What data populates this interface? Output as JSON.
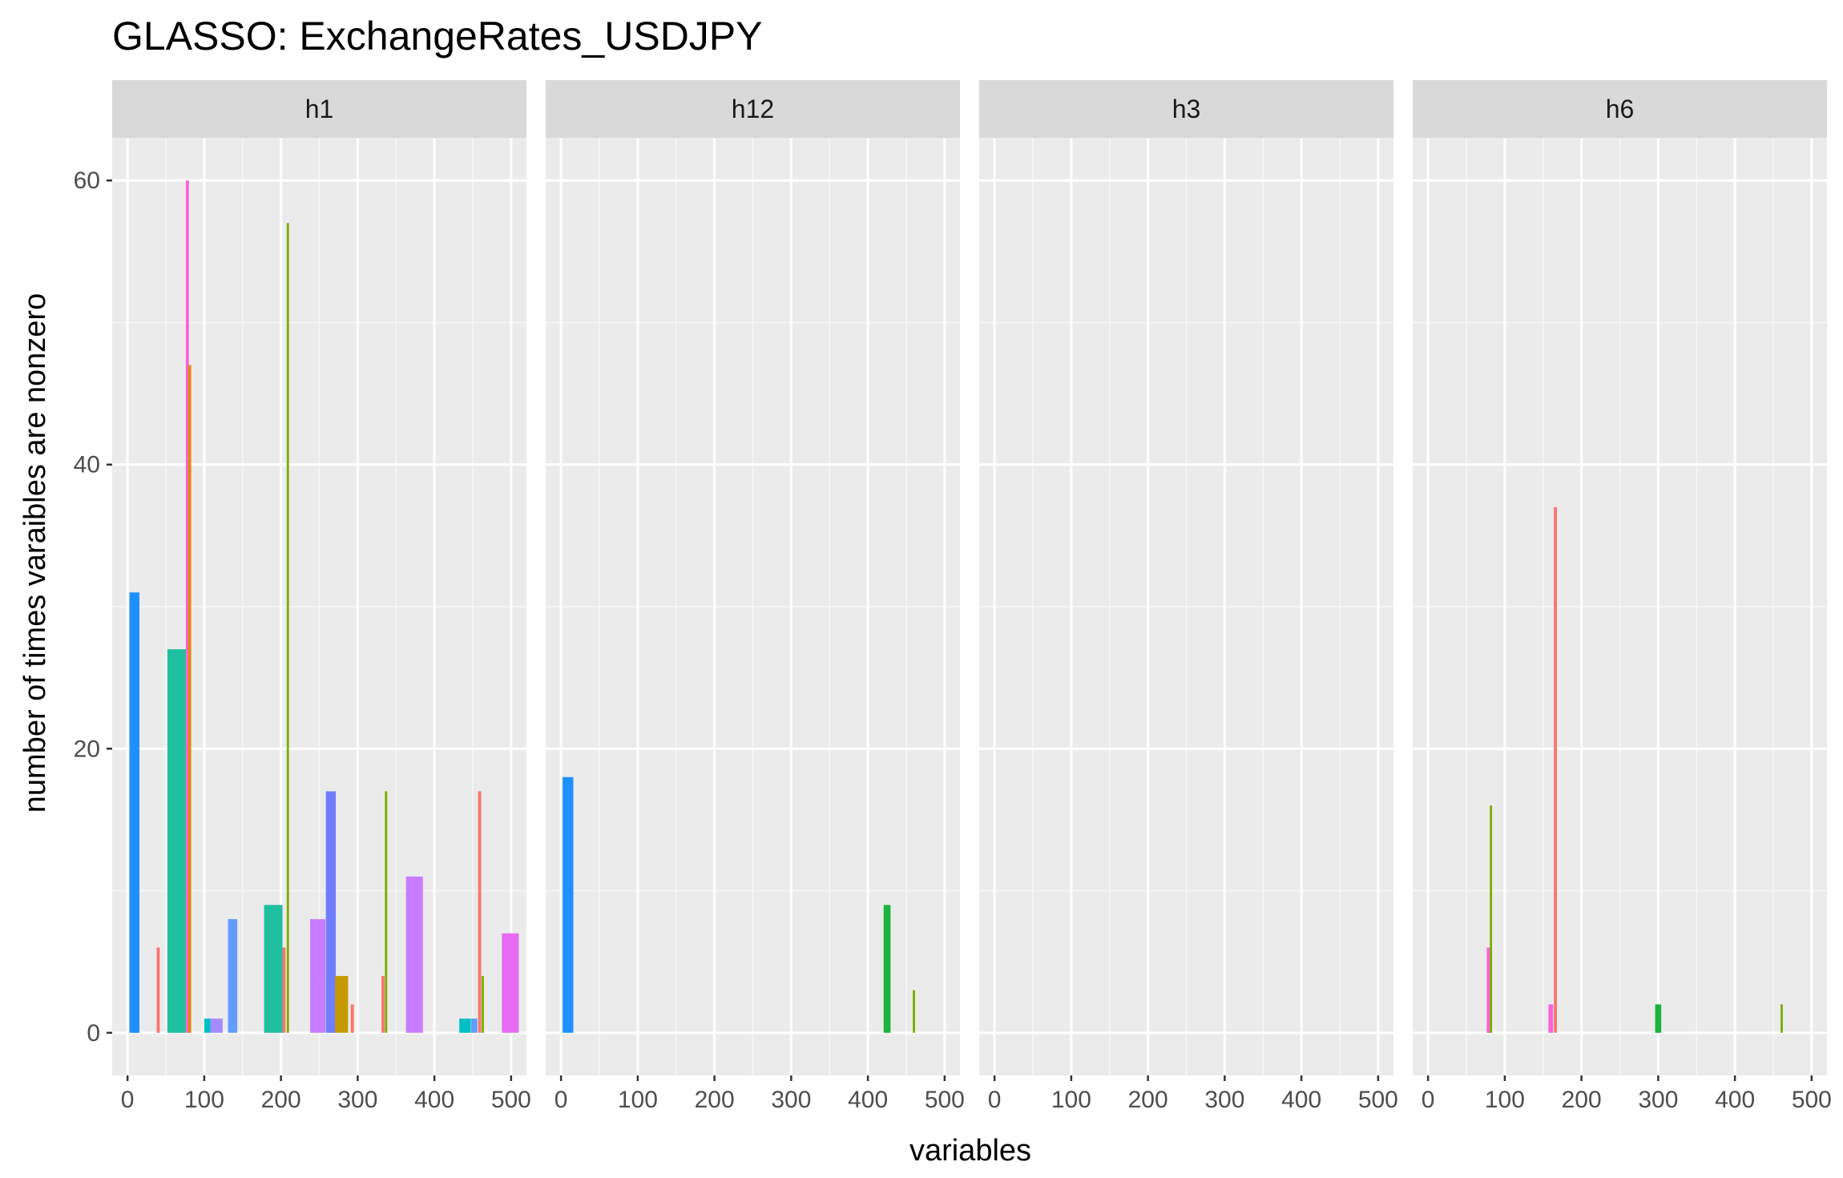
{
  "chart_data": {
    "type": "bar",
    "title": "GLASSO: ExchangeRates_USDJPY",
    "xlabel": "variables",
    "ylabel": "number of times varaibles are nonzero",
    "xlim": [
      -20,
      520
    ],
    "ylim": [
      -3,
      63
    ],
    "x_ticks": [
      0,
      100,
      200,
      300,
      400,
      500
    ],
    "x_tick_labels": [
      "0",
      "100",
      "200",
      "300",
      "400",
      "500"
    ],
    "y_ticks": [
      0,
      20,
      40,
      60
    ],
    "y_tick_labels": [
      "0",
      "20",
      "40",
      "60"
    ],
    "grid": true,
    "legend": "none",
    "panels": [
      {
        "name": "h1",
        "bars": [
          {
            "x": 9,
            "width": 13,
            "value": 31,
            "color": "#1e90ff"
          },
          {
            "x": 40,
            "width": 4,
            "value": 6,
            "color": "#f8766d"
          },
          {
            "x": 64,
            "width": 24,
            "value": 27,
            "color": "#1fbfa0"
          },
          {
            "x": 78,
            "width": 4,
            "value": 60,
            "color": "#fb61d7"
          },
          {
            "x": 81,
            "width": 4,
            "value": 47,
            "color": "#e68613"
          },
          {
            "x": 104,
            "width": 8,
            "value": 1,
            "color": "#00bfc4"
          },
          {
            "x": 116,
            "width": 16,
            "value": 1,
            "color": "#a58aff"
          },
          {
            "x": 137,
            "width": 12,
            "value": 8,
            "color": "#619cff"
          },
          {
            "x": 190,
            "width": 24,
            "value": 9,
            "color": "#1fbfa0"
          },
          {
            "x": 204,
            "width": 4,
            "value": 6,
            "color": "#f8766d"
          },
          {
            "x": 209,
            "width": 3,
            "value": 57,
            "color": "#7cae00"
          },
          {
            "x": 248,
            "width": 20,
            "value": 8,
            "color": "#c77cff"
          },
          {
            "x": 265,
            "width": 13,
            "value": 17,
            "color": "#6f7eff"
          },
          {
            "x": 279,
            "width": 17,
            "value": 4,
            "color": "#c49a00"
          },
          {
            "x": 293,
            "width": 4,
            "value": 2,
            "color": "#f8766d"
          },
          {
            "x": 333,
            "width": 4,
            "value": 4,
            "color": "#f8766d"
          },
          {
            "x": 337,
            "width": 3,
            "value": 17,
            "color": "#7cae00"
          },
          {
            "x": 374,
            "width": 22,
            "value": 11,
            "color": "#c77cff"
          },
          {
            "x": 440,
            "width": 15,
            "value": 1,
            "color": "#00bfc4"
          },
          {
            "x": 452,
            "width": 8,
            "value": 1,
            "color": "#619cff"
          },
          {
            "x": 459,
            "width": 4,
            "value": 17,
            "color": "#f8766d"
          },
          {
            "x": 463,
            "width": 3,
            "value": 4,
            "color": "#7cae00"
          },
          {
            "x": 499,
            "width": 22,
            "value": 7,
            "color": "#e76bf3"
          }
        ]
      },
      {
        "name": "h12",
        "bars": [
          {
            "x": 9,
            "width": 14,
            "value": 18,
            "color": "#1e90ff"
          },
          {
            "x": 425,
            "width": 9,
            "value": 9,
            "color": "#1db33f"
          },
          {
            "x": 460,
            "width": 3,
            "value": 3,
            "color": "#7cae00"
          }
        ]
      },
      {
        "name": "h3",
        "bars": []
      },
      {
        "name": "h6",
        "bars": [
          {
            "x": 79,
            "width": 5,
            "value": 6,
            "color": "#fb61d7"
          },
          {
            "x": 82,
            "width": 3,
            "value": 16,
            "color": "#7cae00"
          },
          {
            "x": 160,
            "width": 6,
            "value": 2,
            "color": "#fb61d7"
          },
          {
            "x": 166,
            "width": 4,
            "value": 37,
            "color": "#f8766d"
          },
          {
            "x": 300,
            "width": 8,
            "value": 2,
            "color": "#1db33f"
          },
          {
            "x": 461,
            "width": 3,
            "value": 2,
            "color": "#7cae00"
          }
        ]
      }
    ]
  }
}
